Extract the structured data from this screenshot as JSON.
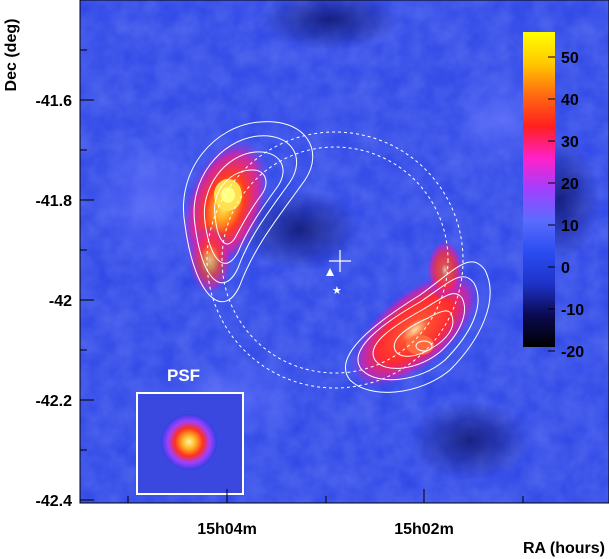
{
  "figure": {
    "axes": {
      "ylabel": "Dec (deg)",
      "xlabel": "RA (hours)",
      "y_ticks": [
        "-41.6",
        "-41.8",
        "-42",
        "-42.2",
        "-42.4"
      ],
      "x_ticks": [
        "15h04m",
        "15h02m"
      ]
    },
    "colorbar": {
      "ticks": [
        "50",
        "40",
        "30",
        "20",
        "10",
        "0",
        "-10",
        "-20"
      ],
      "range": [
        -20,
        55
      ],
      "gradient": [
        "#000000",
        "#0a0a50",
        "#1e32c8",
        "#2a4cf0",
        "#5a6cff",
        "#a040ff",
        "#ff20c8",
        "#ff2020",
        "#ff6a10",
        "#ffc800",
        "#ffff00"
      ]
    },
    "psf_label": "PSF",
    "colors": {
      "background": "#2a40e0",
      "contour": "#ffffff",
      "hot": "#ff2a20",
      "peak": "#ffe040"
    },
    "markers": [
      "plus-marker",
      "triangle-marker",
      "star-marker"
    ]
  }
}
